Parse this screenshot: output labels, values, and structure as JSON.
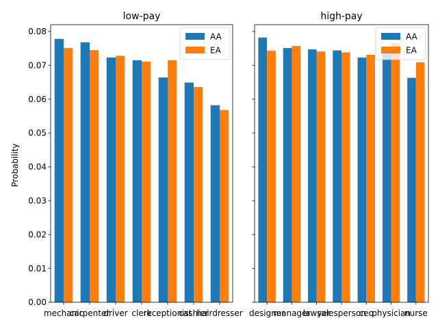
{
  "figure": {
    "ylabel": "Probability",
    "yticks": [
      "0.00",
      "0.01",
      "0.02",
      "0.03",
      "0.04",
      "0.05",
      "0.06",
      "0.07",
      "0.08"
    ]
  },
  "chart_data": [
    {
      "type": "bar",
      "title": "low-pay",
      "xlabel": "",
      "ylabel": "Probability",
      "ylim": [
        0,
        0.082
      ],
      "categories": [
        "mechanic",
        "carpenter",
        "driver",
        "clerk",
        "receptionist",
        "cashier",
        "hairdresser"
      ],
      "series": [
        {
          "name": "AA",
          "color": "#1f77b4",
          "values": [
            0.0778,
            0.0768,
            0.0723,
            0.0715,
            0.0664,
            0.0649,
            0.0582
          ]
        },
        {
          "name": "EA",
          "color": "#ff7f0e",
          "values": [
            0.0751,
            0.0745,
            0.0728,
            0.0711,
            0.0715,
            0.0636,
            0.0568
          ]
        }
      ],
      "legend": "top-right",
      "grid": false
    },
    {
      "type": "bar",
      "title": "high-pay",
      "xlabel": "",
      "ylabel": "",
      "ylim": [
        0,
        0.082
      ],
      "categories": [
        "designer",
        "manager",
        "lawyer",
        "salesperson",
        "ceo",
        "physician",
        "nurse"
      ],
      "series": [
        {
          "name": "AA",
          "color": "#1f77b4",
          "values": [
            0.0782,
            0.0751,
            0.0747,
            0.0744,
            0.0723,
            0.0755,
            0.0663
          ]
        },
        {
          "name": "EA",
          "color": "#ff7f0e",
          "values": [
            0.0743,
            0.0757,
            0.0741,
            0.0738,
            0.0731,
            0.0765,
            0.0709
          ]
        }
      ],
      "legend": "top-right",
      "grid": false
    }
  ]
}
